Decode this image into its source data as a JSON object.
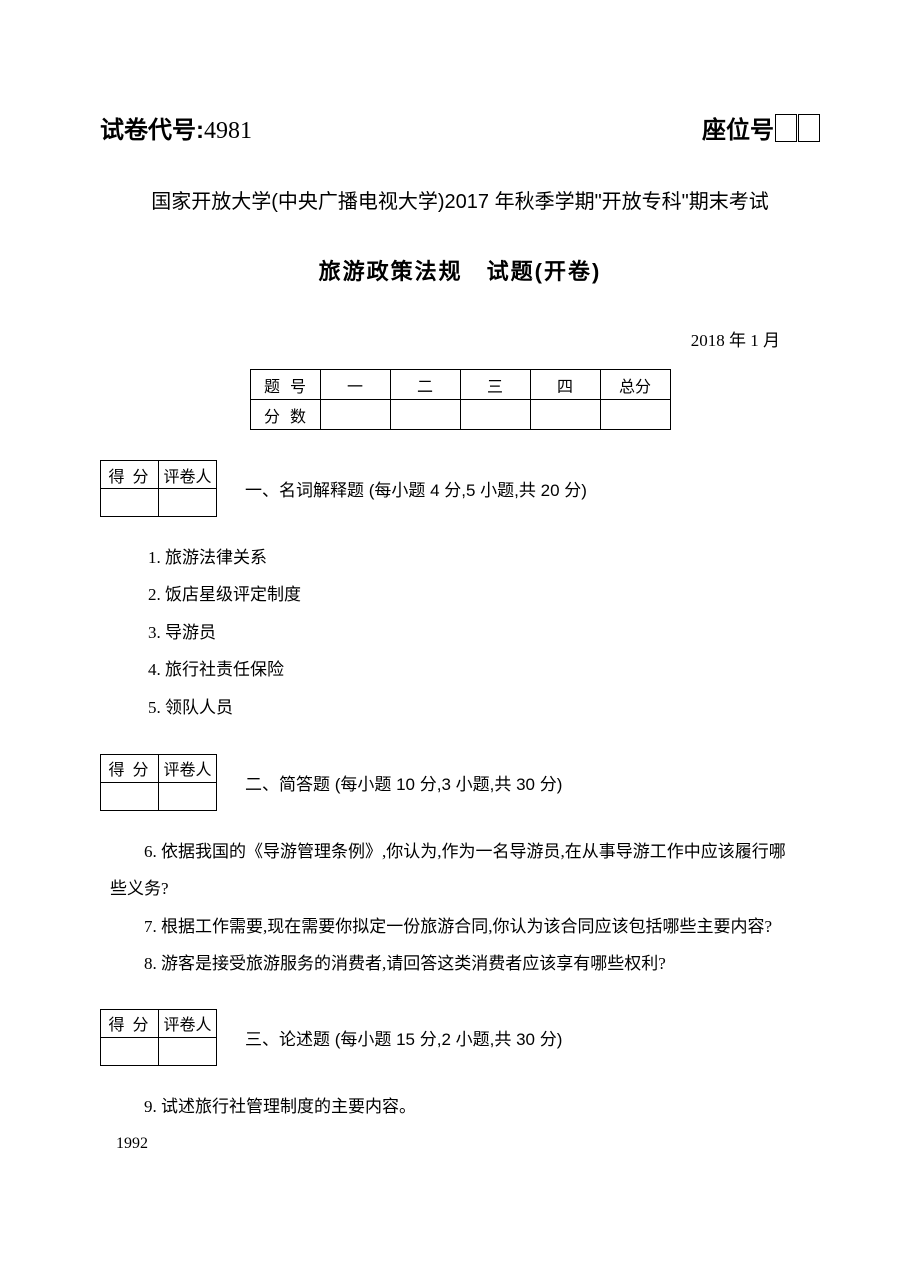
{
  "header": {
    "paper_code_label": "试卷代号:",
    "paper_code": "4981",
    "seat_label": "座位号"
  },
  "university_line": "国家开放大学(中央广播电视大学)2017 年秋季学期\"开放专科\"期末考试",
  "title_line": "旅游政策法规　试题(开卷)",
  "date_line": "2018 年 1 月",
  "score_table": {
    "row_label_1": "题号",
    "row_label_2": "分数",
    "cols": [
      "一",
      "二",
      "三",
      "四",
      "总分"
    ]
  },
  "grader_table": {
    "c1": "得分",
    "c2": "评卷人"
  },
  "sections": {
    "s1": {
      "title": "一、名词解释题 (每小题 4 分,5 小题,共 20 分)",
      "items": [
        "1. 旅游法律关系",
        "2. 饭店星级评定制度",
        "3. 导游员",
        "4. 旅行社责任保险",
        "5. 领队人员"
      ]
    },
    "s2": {
      "title": "二、简答题 (每小题 10 分,3 小题,共 30 分)",
      "q6_a": "6. 依据我国的《导游管理条例》,你认为,作为一名导游员,在从事导游工作中应该履行哪",
      "q6_b": "些义务?",
      "q7": "7. 根据工作需要,现在需要你拟定一份旅游合同,你认为该合同应该包括哪些主要内容?",
      "q8": "8. 游客是接受旅游服务的消费者,请回答这类消费者应该享有哪些权利?"
    },
    "s3": {
      "title": "三、论述题 (每小题 15 分,2 小题,共 30 分)",
      "q9": "9. 试述旅行社管理制度的主要内容。"
    }
  },
  "page_number": "1992"
}
